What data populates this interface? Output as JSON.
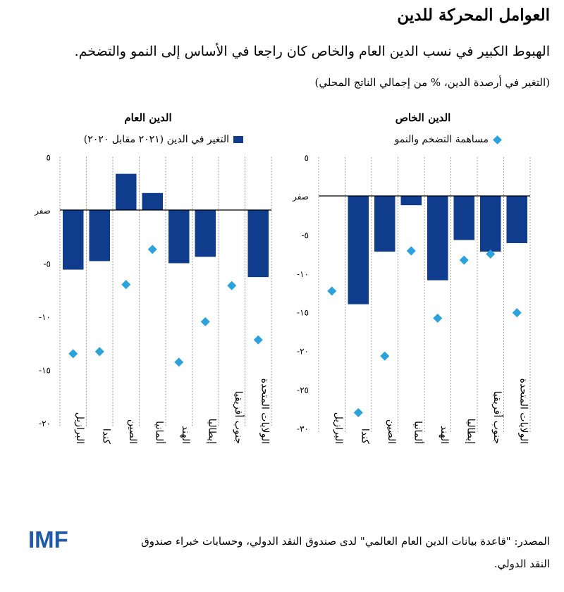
{
  "header": {
    "title": "العوامل المحركة للدين",
    "subtitle": "الهبوط الكبير في نسب الدين العام والخاص كان راجعا في الأساس إلى النمو والتضخم.",
    "note": "(التغير في أرصدة الدين، % من إجمالي الناتج المحلي)"
  },
  "legend": {
    "bars": "التغير في الدين (٢٠٢١ مقابل ٢٠٢٠)",
    "diamonds": "مساهمة التضخم والنمو"
  },
  "colors": {
    "bar": "#0f3c8c",
    "diamond": "#2aa2dd"
  },
  "footer": {
    "logo": "IMF",
    "source": "المصدر: \"قاعدة بيانات الدين العام العالمي\" لدى صندوق النقد الدولي، وحسابات خبراء صندوق النقد الدولي."
  },
  "chart_data": [
    {
      "type": "bar",
      "title": "الدين العام",
      "categories": [
        "البرازيل",
        "كندا",
        "الصين",
        "ألمانيا",
        "الهند",
        "إيطاليا",
        "جنوب أفريقيا",
        "الولايات المتحدة"
      ],
      "series": [
        {
          "name": "التغير في الدين (٢٠٢١ مقابل ٢٠٢٠)",
          "kind": "bar",
          "values": [
            -5.6,
            -4.8,
            3.4,
            1.6,
            -5.0,
            -4.4,
            0,
            -6.3
          ]
        },
        {
          "name": "مساهمة التضخم والنمو",
          "kind": "diamond",
          "values": [
            -13.5,
            -13.3,
            -7.0,
            -3.7,
            -14.3,
            -10.5,
            -7.1,
            -12.2
          ]
        }
      ],
      "ylim": [
        -20,
        5
      ],
      "yticks": [
        {
          "value": 5,
          "label": "٥"
        },
        {
          "value": 0,
          "label": "صفر"
        },
        {
          "value": -5,
          "label": "-٥"
        },
        {
          "value": -10,
          "label": "-١٠"
        },
        {
          "value": -15,
          "label": "-١٥"
        },
        {
          "value": -20,
          "label": "-٢٠"
        }
      ]
    },
    {
      "type": "bar",
      "title": "الدين الخاص",
      "categories": [
        "البرازيل",
        "كندا",
        "الصين",
        "ألمانيا",
        "الهند",
        "إيطاليا",
        "جنوب أفريقيا",
        "الولايات المتحدة"
      ],
      "series": [
        {
          "name": "التغير في الدين (٢٠٢١ مقابل ٢٠٢٠)",
          "kind": "bar",
          "values": [
            0,
            -14.0,
            -7.2,
            -1.2,
            -10.9,
            -5.7,
            -7.2,
            -6.1
          ]
        },
        {
          "name": "مساهمة التضخم والنمو",
          "kind": "diamond",
          "values": [
            -12.3,
            -28.0,
            -20.7,
            -7.1,
            -15.8,
            -8.3,
            -7.5,
            -15.1
          ]
        }
      ],
      "ylim": [
        -30,
        5
      ],
      "yticks": [
        {
          "value": 5,
          "label": "٥"
        },
        {
          "value": 0,
          "label": "صفر"
        },
        {
          "value": -5,
          "label": "-٥"
        },
        {
          "value": -10,
          "label": "-١٠"
        },
        {
          "value": -15,
          "label": "-١٥"
        },
        {
          "value": -20,
          "label": "-٢٠"
        },
        {
          "value": -25,
          "label": "-٢٥"
        },
        {
          "value": -30,
          "label": "-٣٠"
        }
      ]
    }
  ]
}
